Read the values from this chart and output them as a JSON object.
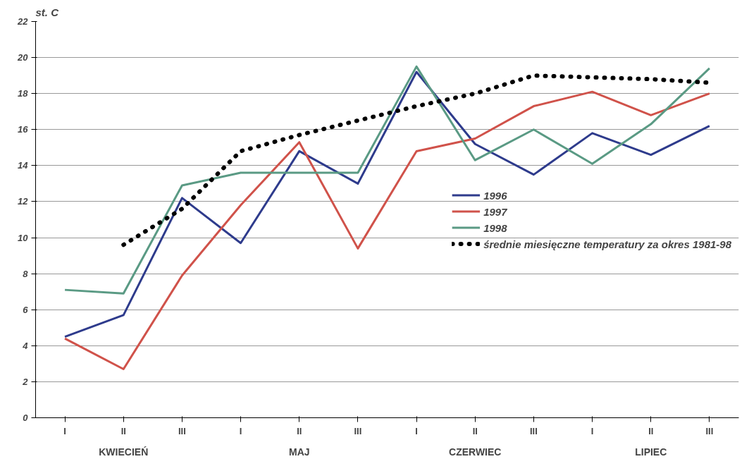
{
  "chart_data": {
    "type": "line",
    "ylabel": "st. C",
    "categories": [
      "I",
      "II",
      "III",
      "I",
      "II",
      "III",
      "I",
      "II",
      "III",
      "I",
      "II",
      "III"
    ],
    "annotations": [
      "KWIECIEŃ",
      "MAJ",
      "CZERWIEC",
      "LIPIEC"
    ],
    "series": [
      {
        "name": "1996",
        "color": "#2e3b8c",
        "values": [
          4.5,
          5.7,
          12.2,
          9.7,
          14.8,
          13.0,
          19.2,
          15.2,
          13.5,
          15.8,
          14.6,
          16.2
        ]
      },
      {
        "name": "1997",
        "color": "#d0524a",
        "values": [
          4.4,
          2.7,
          7.9,
          11.8,
          15.3,
          9.4,
          14.8,
          15.5,
          17.3,
          18.1,
          16.8,
          18.0
        ]
      },
      {
        "name": "1998",
        "color": "#5a9a84",
        "values": [
          7.1,
          6.9,
          12.9,
          13.6,
          13.6,
          13.6,
          19.5,
          14.3,
          16.0,
          14.1,
          16.3,
          19.4
        ]
      },
      {
        "name": "średnie miesięczne temperatury za okres 1981-98",
        "color": "#000000",
        "line_style": "dotted",
        "values": [
          null,
          9.6,
          11.6,
          14.8,
          15.7,
          16.5,
          17.3,
          18.0,
          19.0,
          18.9,
          18.8,
          18.6
        ]
      }
    ],
    "ylim": [
      0,
      22
    ],
    "yticks": [
      0,
      2,
      4,
      6,
      8,
      10,
      12,
      14,
      16,
      18,
      20,
      22
    ],
    "grid": "y",
    "legend": "right",
    "marker": "none",
    "line_style": "solid"
  }
}
